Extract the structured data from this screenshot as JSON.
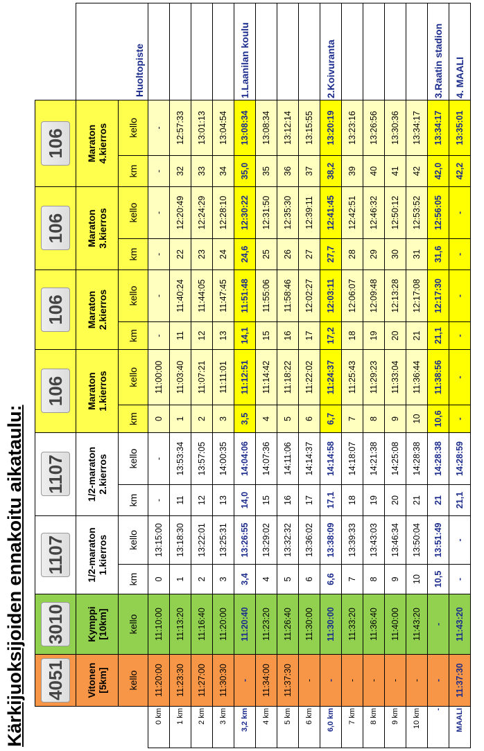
{
  "title": "Kärkijuoksijoiden ennakoitu aikataulu:",
  "table": {
    "groups": [
      {
        "bib": "4051",
        "name": "Vitonen\n[5km]",
        "color": "#f79646"
      },
      {
        "bib": "3010",
        "name": "Kymppi\n[10km]",
        "color": "#92d050"
      },
      {
        "bib": "1107",
        "name": "1/2-maraton\n1.kierros",
        "color": "#ffffff"
      },
      {
        "bib": "1107",
        "name": "1/2-maraton\n2.kierros",
        "color": "#ffffff"
      },
      {
        "bib": "106",
        "name": "Maraton\n1.kierros",
        "color": "#ffff4d"
      },
      {
        "bib": "106",
        "name": "Maraton\n2.kierros",
        "color": "#ffff4d"
      },
      {
        "bib": "106",
        "name": "Maraton\n3.kierros",
        "color": "#ffff4d"
      },
      {
        "bib": "106",
        "name": "Maraton\n4.kierros",
        "color": "#ffff4d"
      }
    ],
    "huolto_header": "Huoltopiste",
    "subheaders": [
      "kello",
      "kello",
      "km",
      "kello",
      "km",
      "kello",
      "km",
      "kello",
      "km",
      "kello",
      "km",
      "kello",
      "km",
      "kello"
    ],
    "rows": [
      [
        "0 km",
        "11:20:00",
        "11:10:00",
        "0",
        "13:15:00",
        "-",
        "-",
        "0",
        "11:00:00",
        "-",
        "-",
        "-",
        "-",
        "-",
        "-"
      ],
      [
        "1 km",
        "11:23:30",
        "11:13:20",
        "1",
        "13:18:30",
        "11",
        "13:53:34",
        "1",
        "11:03:40",
        "11",
        "11:40:24",
        "22",
        "12:20:49",
        "32",
        "12:57:33"
      ],
      [
        "2 km",
        "11:27:00",
        "11:16:40",
        "2",
        "13:22:01",
        "12",
        "13:57:05",
        "2",
        "11:07:21",
        "12",
        "11:44:05",
        "23",
        "12:24:29",
        "33",
        "13:01:13"
      ],
      [
        "3 km",
        "11:30:30",
        "11:20:00",
        "3",
        "13:25:31",
        "13",
        "14:00:35",
        "3",
        "11:11:01",
        "13",
        "11:47:45",
        "24",
        "12:28:10",
        "34",
        "13:04:54"
      ],
      [
        "3,2 km",
        "-",
        "11:20:40",
        "3,4",
        "13:26:55",
        "14,0",
        "14:04:06",
        "3,5",
        "11:12:51",
        "14,1",
        "11:51:48",
        "24,6",
        "12:30:22",
        "35,0",
        "13:08:34",
        "1.Laanilan koulu"
      ],
      [
        "4 km",
        "11:34:00",
        "11:23:20",
        "4",
        "13:29:02",
        "15",
        "14:07:36",
        "4",
        "11:14:42",
        "15",
        "11:55:06",
        "25",
        "12:31:50",
        "35",
        "13:08:34"
      ],
      [
        "5 km",
        "11:37:30",
        "11:26:40",
        "5",
        "13:32:32",
        "16",
        "14:11:06",
        "5",
        "11:18:22",
        "16",
        "11:58:46",
        "26",
        "12:35:30",
        "36",
        "13:12:14"
      ],
      [
        "6 km",
        "-",
        "11:30:00",
        "6",
        "13:36:02",
        "17",
        "14:14:37",
        "6",
        "11:22:02",
        "17",
        "12:02:27",
        "27",
        "12:39:11",
        "37",
        "13:15:55"
      ],
      [
        "6,0 km",
        "-",
        "11:30:00",
        "6,6",
        "13:38:09",
        "17,1",
        "14:14:58",
        "6,7",
        "11:24:37",
        "17,2",
        "12:03:11",
        "27,7",
        "12:41:45",
        "38,2",
        "13:20:19",
        "2.Koivuranta"
      ],
      [
        "7 km",
        "-",
        "11:33:20",
        "7",
        "13:39:33",
        "18",
        "14:18:07",
        "7",
        "11:25:43",
        "18",
        "12:06:07",
        "28",
        "12:42:51",
        "39",
        "13:23:16"
      ],
      [
        "8 km",
        "-",
        "11:36:40",
        "8",
        "13:43:03",
        "19",
        "14:21:38",
        "8",
        "11:29:23",
        "19",
        "12:09:48",
        "29",
        "12:46:32",
        "40",
        "13:26:56"
      ],
      [
        "9 km",
        "-",
        "11:40:00",
        "9",
        "13:46:34",
        "20",
        "14:25:08",
        "9",
        "11:33:04",
        "20",
        "12:13:28",
        "30",
        "12:50:12",
        "41",
        "13:30:36"
      ],
      [
        "10 km",
        "-",
        "11:43:20",
        "10",
        "13:50:04",
        "21",
        "14:28:38",
        "10",
        "11:36:44",
        "21",
        "12:17:08",
        "31",
        "12:53:52",
        "42",
        "13:34:17"
      ],
      [
        "-",
        "-",
        "-",
        "10,5",
        "13:51:49",
        "21",
        "14:28:38",
        "10,6",
        "11:38:56",
        "21,1",
        "12:17:30",
        "31,6",
        "12:56:05",
        "42,0",
        "13:34:17",
        "3.Raatin stadion"
      ],
      [
        "MAALI",
        "11:37:30",
        "11:43:20",
        "-",
        "-",
        "21,1",
        "14:28:59",
        "-",
        "-",
        "-",
        "-",
        "-",
        "-",
        "42,2",
        "13:35:01",
        "4. MAALI"
      ]
    ]
  }
}
